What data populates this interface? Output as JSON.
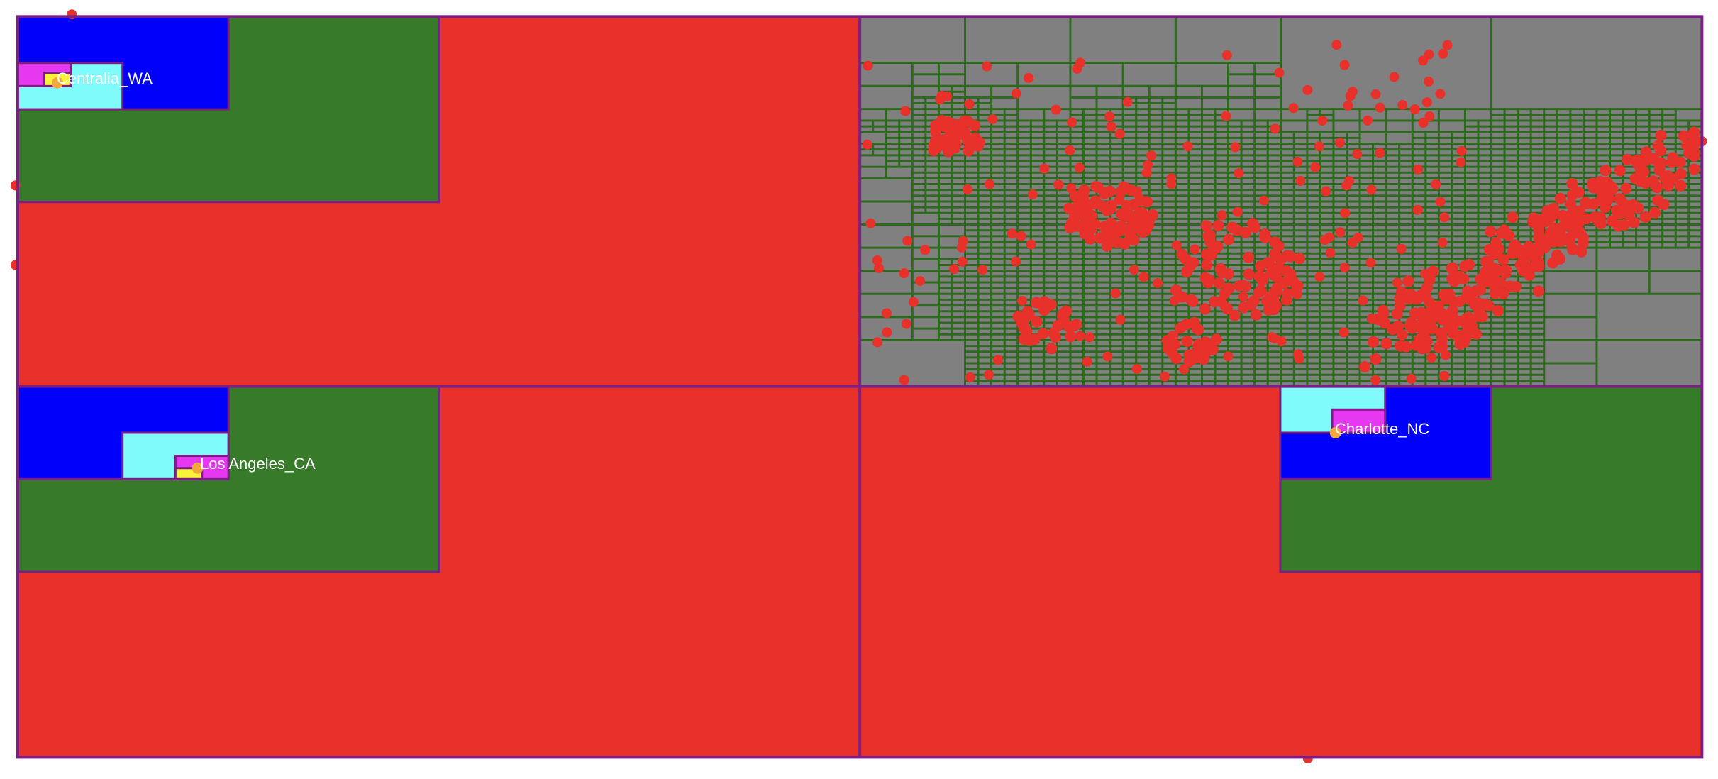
{
  "diagram": {
    "type": "quadtree-spatial-partition",
    "colors": {
      "background": "#ffffff",
      "outer_border": "#7b1f86",
      "level_1_fill": "#e8312a",
      "level_2_fill": "#367a2a",
      "level_3_fill": "#0000fb",
      "level_4_fill": "#7ffbfb",
      "level_5_fill": "#e638f0",
      "level_6_fill": "#fbf33a",
      "dense_region_fill": "#808080",
      "dense_region_grid": "#2d6a1e",
      "point_color": "#e8312a",
      "query_point_color": "#f2a93b",
      "label_color": "#ffffff"
    },
    "labels": [
      {
        "id": "centralia",
        "text": "Centralia_WA"
      },
      {
        "id": "losangeles",
        "text": "Los Angeles_CA"
      },
      {
        "id": "charlotte",
        "text": "Charlotte_NC"
      }
    ]
  }
}
